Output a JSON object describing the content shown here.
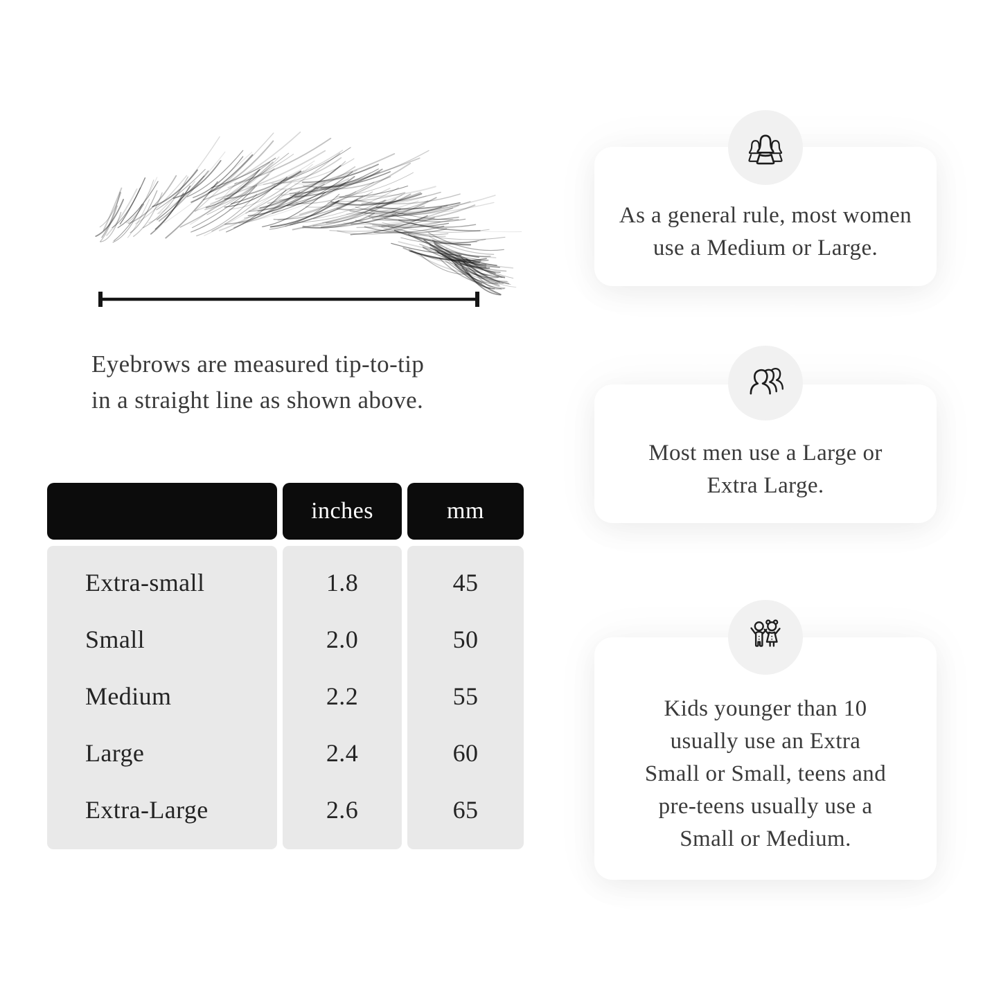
{
  "diagram": {
    "caption_lines": [
      "Eyebrows are measured tip-to-tip",
      "in a straight line as shown above."
    ]
  },
  "table": {
    "col_headers": {
      "size": "",
      "inches": "inches",
      "mm": "mm"
    },
    "rows": [
      {
        "label": "Extra-small",
        "inches": "1.8",
        "mm": "45"
      },
      {
        "label": "Small",
        "inches": "2.0",
        "mm": "50"
      },
      {
        "label": "Medium",
        "inches": "2.2",
        "mm": "55"
      },
      {
        "label": "Large",
        "inches": "2.4",
        "mm": "60"
      },
      {
        "label": "Extra-Large",
        "inches": "2.6",
        "mm": "65"
      }
    ]
  },
  "cards": [
    {
      "icon": "women-group-icon",
      "lines": [
        "As a general rule, most women",
        "use a Medium or Large."
      ]
    },
    {
      "icon": "men-group-icon",
      "lines": [
        "Most men use a Large or",
        "Extra Large."
      ]
    },
    {
      "icon": "kids-icon",
      "lines": [
        "Kids younger than 10",
        "usually use an Extra",
        "Small or Small, teens and",
        "pre-teens usually use a",
        "Small or Medium."
      ]
    }
  ],
  "colors": {
    "header_bg": "#0c0c0c",
    "header_text": "#ffffff",
    "body_cell_bg": "#e9e9e9",
    "icon_circle_bg": "#f1f1f1",
    "card_bg": "#ffffff",
    "line": "#151515",
    "text": "#3a3a3a"
  }
}
